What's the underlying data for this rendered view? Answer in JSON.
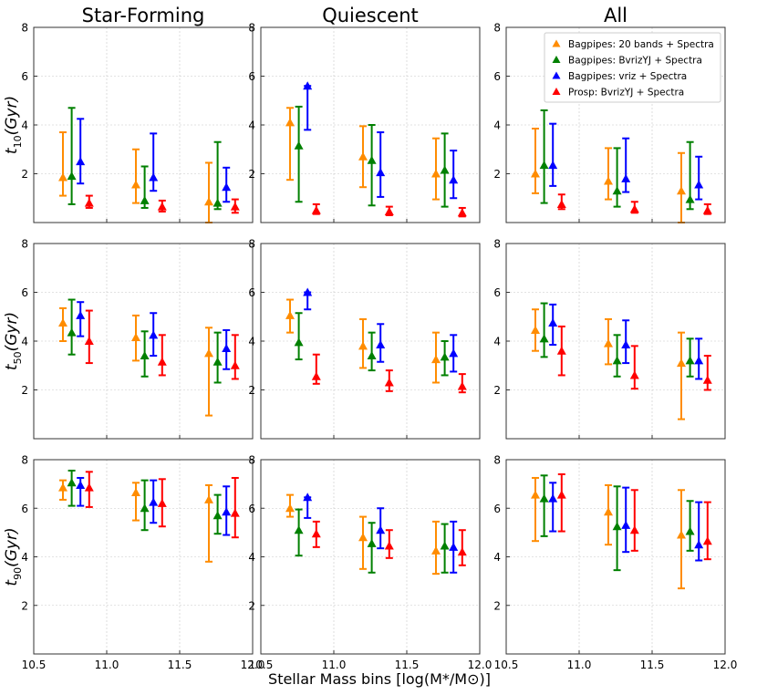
{
  "chart_data": {
    "type": "scatter",
    "xlabel": "Stellar Mass bins [log(M*/M⊙)]",
    "xlim": [
      10.5,
      12.0
    ],
    "x_ticks": [
      "10.5",
      "11.0",
      "11.5",
      "12.0"
    ],
    "y_ticks": [
      "2",
      "4",
      "6",
      "8"
    ],
    "columns": [
      "Star-Forming",
      "Quiescent",
      "All"
    ],
    "rows": [
      {
        "ylabel_base": "t",
        "ylabel_sub": "10",
        "ylabel_unit": "(Gyr)",
        "ylim": [
          0.0,
          8.0
        ]
      },
      {
        "ylabel_base": "t",
        "ylabel_sub": "50",
        "ylabel_unit": "(Gyr)",
        "ylim": [
          0.0,
          8.0
        ]
      },
      {
        "ylabel_base": "t",
        "ylabel_sub": "90",
        "ylabel_unit": "(Gyr)",
        "ylim": [
          0.0,
          8.0
        ]
      }
    ],
    "legend": {
      "location": "top-right",
      "panel": "All / t10"
    },
    "series": [
      {
        "name": "Bagpipes: 20 bands + Spectra",
        "color": "#ff8c00",
        "x_offset": -0.03
      },
      {
        "name": "Bagpipes: BvrizYJ + Spectra",
        "color": "#008000",
        "x_offset": 0.03
      },
      {
        "name": "Bagpipes: vriz + Spectra",
        "color": "#0000ff",
        "x_offset": 0.09
      },
      {
        "name": "Prosp: BvrizYJ + Spectra",
        "color": "#ff0000",
        "x_offset": 0.15
      }
    ],
    "bin_centers": [
      10.73,
      11.23,
      11.73
    ],
    "panels": [
      {
        "row": 0,
        "col": 0,
        "points": [
          [
            [
              1.85,
              1.1,
              3.7
            ],
            [
              1.55,
              0.8,
              3.0
            ],
            [
              0.85,
              0.0,
              2.45
            ]
          ],
          [
            [
              1.9,
              0.75,
              4.7
            ],
            [
              0.9,
              0.6,
              2.3
            ],
            [
              0.8,
              0.55,
              3.3
            ]
          ],
          [
            [
              2.5,
              1.6,
              4.25
            ],
            [
              1.85,
              1.3,
              3.65
            ],
            [
              1.45,
              0.85,
              2.25
            ]
          ],
          [
            [
              0.8,
              0.6,
              1.1
            ],
            [
              0.65,
              0.45,
              0.9
            ],
            [
              0.65,
              0.4,
              0.95
            ]
          ]
        ]
      },
      {
        "row": 0,
        "col": 1,
        "points": [
          [
            [
              4.1,
              1.75,
              4.7
            ],
            [
              2.7,
              1.45,
              3.95
            ],
            [
              2.0,
              0.95,
              3.45
            ]
          ],
          [
            [
              3.15,
              0.85,
              4.75
            ],
            [
              2.55,
              0.7,
              4.0
            ],
            [
              2.15,
              0.65,
              3.65
            ]
          ],
          [
            [
              5.6,
              3.8,
              5.6
            ],
            [
              2.05,
              1.05,
              3.7
            ],
            [
              1.75,
              1.0,
              2.95
            ]
          ],
          [
            [
              0.5,
              0.35,
              0.75
            ],
            [
              0.45,
              0.3,
              0.65
            ],
            [
              0.4,
              0.25,
              0.6
            ]
          ]
        ]
      },
      {
        "row": 0,
        "col": 2,
        "points": [
          [
            [
              2.0,
              1.2,
              3.85
            ],
            [
              1.7,
              0.95,
              3.05
            ],
            [
              1.3,
              0.0,
              2.85
            ]
          ],
          [
            [
              2.35,
              0.8,
              4.6
            ],
            [
              1.3,
              0.65,
              3.05
            ],
            [
              0.95,
              0.55,
              3.3
            ]
          ],
          [
            [
              2.35,
              1.5,
              4.05
            ],
            [
              1.8,
              1.25,
              3.45
            ],
            [
              1.55,
              0.95,
              2.7
            ]
          ],
          [
            [
              0.75,
              0.55,
              1.15
            ],
            [
              0.55,
              0.4,
              0.85
            ],
            [
              0.5,
              0.35,
              0.75
            ]
          ]
        ]
      },
      {
        "row": 1,
        "col": 0,
        "points": [
          [
            [
              4.75,
              4.0,
              5.35
            ],
            [
              4.15,
              3.2,
              5.05
            ],
            [
              3.5,
              0.95,
              4.55
            ]
          ],
          [
            [
              4.35,
              3.45,
              5.7
            ],
            [
              3.4,
              2.55,
              4.4
            ],
            [
              3.15,
              2.3,
              4.35
            ]
          ],
          [
            [
              5.05,
              4.2,
              5.6
            ],
            [
              4.25,
              3.4,
              5.15
            ],
            [
              3.7,
              2.85,
              4.45
            ]
          ],
          [
            [
              4.0,
              3.1,
              5.25
            ],
            [
              3.15,
              2.6,
              4.25
            ],
            [
              3.0,
              2.45,
              4.25
            ]
          ]
        ]
      },
      {
        "row": 1,
        "col": 1,
        "points": [
          [
            [
              5.05,
              4.35,
              5.7
            ],
            [
              3.8,
              2.9,
              4.9
            ],
            [
              3.25,
              2.3,
              4.35
            ]
          ],
          [
            [
              3.95,
              3.25,
              5.15
            ],
            [
              3.4,
              2.8,
              4.35
            ],
            [
              3.35,
              2.6,
              4.0
            ]
          ],
          [
            [
              6.0,
              5.3,
              6.0
            ],
            [
              3.85,
              3.15,
              4.7
            ],
            [
              3.5,
              2.75,
              4.25
            ]
          ],
          [
            [
              2.55,
              2.25,
              3.45
            ],
            [
              2.3,
              1.95,
              2.8
            ],
            [
              2.15,
              1.9,
              2.65
            ]
          ]
        ]
      },
      {
        "row": 1,
        "col": 2,
        "points": [
          [
            [
              4.45,
              3.6,
              5.3
            ],
            [
              3.9,
              3.05,
              4.9
            ],
            [
              3.1,
              0.8,
              4.35
            ]
          ],
          [
            [
              4.1,
              3.35,
              5.55
            ],
            [
              3.2,
              2.55,
              4.25
            ],
            [
              3.2,
              2.55,
              4.1
            ]
          ],
          [
            [
              4.75,
              3.85,
              5.5
            ],
            [
              3.85,
              3.1,
              4.85
            ],
            [
              3.2,
              2.45,
              4.1
            ]
          ],
          [
            [
              3.6,
              2.6,
              4.6
            ],
            [
              2.6,
              2.05,
              3.8
            ],
            [
              2.4,
              2.0,
              3.4
            ]
          ]
        ]
      },
      {
        "row": 2,
        "col": 0,
        "points": [
          [
            [
              6.85,
              6.35,
              7.15
            ],
            [
              6.65,
              5.5,
              7.05
            ],
            [
              6.35,
              3.8,
              6.95
            ]
          ],
          [
            [
              7.05,
              6.1,
              7.55
            ],
            [
              6.0,
              5.1,
              7.15
            ],
            [
              5.7,
              4.95,
              6.55
            ]
          ],
          [
            [
              6.95,
              6.1,
              7.25
            ],
            [
              6.25,
              5.4,
              7.15
            ],
            [
              5.85,
              4.9,
              6.9
            ]
          ],
          [
            [
              6.85,
              6.05,
              7.5
            ],
            [
              6.2,
              5.25,
              7.2
            ],
            [
              5.8,
              4.8,
              7.25
            ]
          ]
        ]
      },
      {
        "row": 2,
        "col": 1,
        "points": [
          [
            [
              6.0,
              5.65,
              6.55
            ],
            [
              4.8,
              3.5,
              5.65
            ],
            [
              4.25,
              3.3,
              5.45
            ]
          ],
          [
            [
              5.1,
              4.05,
              5.95
            ],
            [
              4.55,
              3.35,
              5.4
            ],
            [
              4.45,
              3.35,
              5.35
            ]
          ],
          [
            [
              6.45,
              5.6,
              6.45
            ],
            [
              5.1,
              4.35,
              6.0
            ],
            [
              4.4,
              3.35,
              5.45
            ]
          ],
          [
            [
              4.95,
              4.4,
              5.45
            ],
            [
              4.45,
              3.95,
              5.1
            ],
            [
              4.2,
              3.65,
              5.1
            ]
          ]
        ]
      },
      {
        "row": 2,
        "col": 2,
        "points": [
          [
            [
              6.55,
              4.65,
              7.25
            ],
            [
              5.85,
              4.5,
              6.95
            ],
            [
              4.9,
              2.7,
              6.75
            ]
          ],
          [
            [
              6.4,
              4.85,
              7.35
            ],
            [
              5.25,
              3.45,
              6.9
            ],
            [
              5.05,
              4.25,
              6.3
            ]
          ],
          [
            [
              6.4,
              5.05,
              7.05
            ],
            [
              5.3,
              4.2,
              6.85
            ],
            [
              4.5,
              3.85,
              6.25
            ]
          ],
          [
            [
              6.55,
              5.05,
              7.4
            ],
            [
              5.1,
              4.25,
              6.75
            ],
            [
              4.65,
              3.9,
              6.25
            ]
          ]
        ]
      }
    ]
  }
}
